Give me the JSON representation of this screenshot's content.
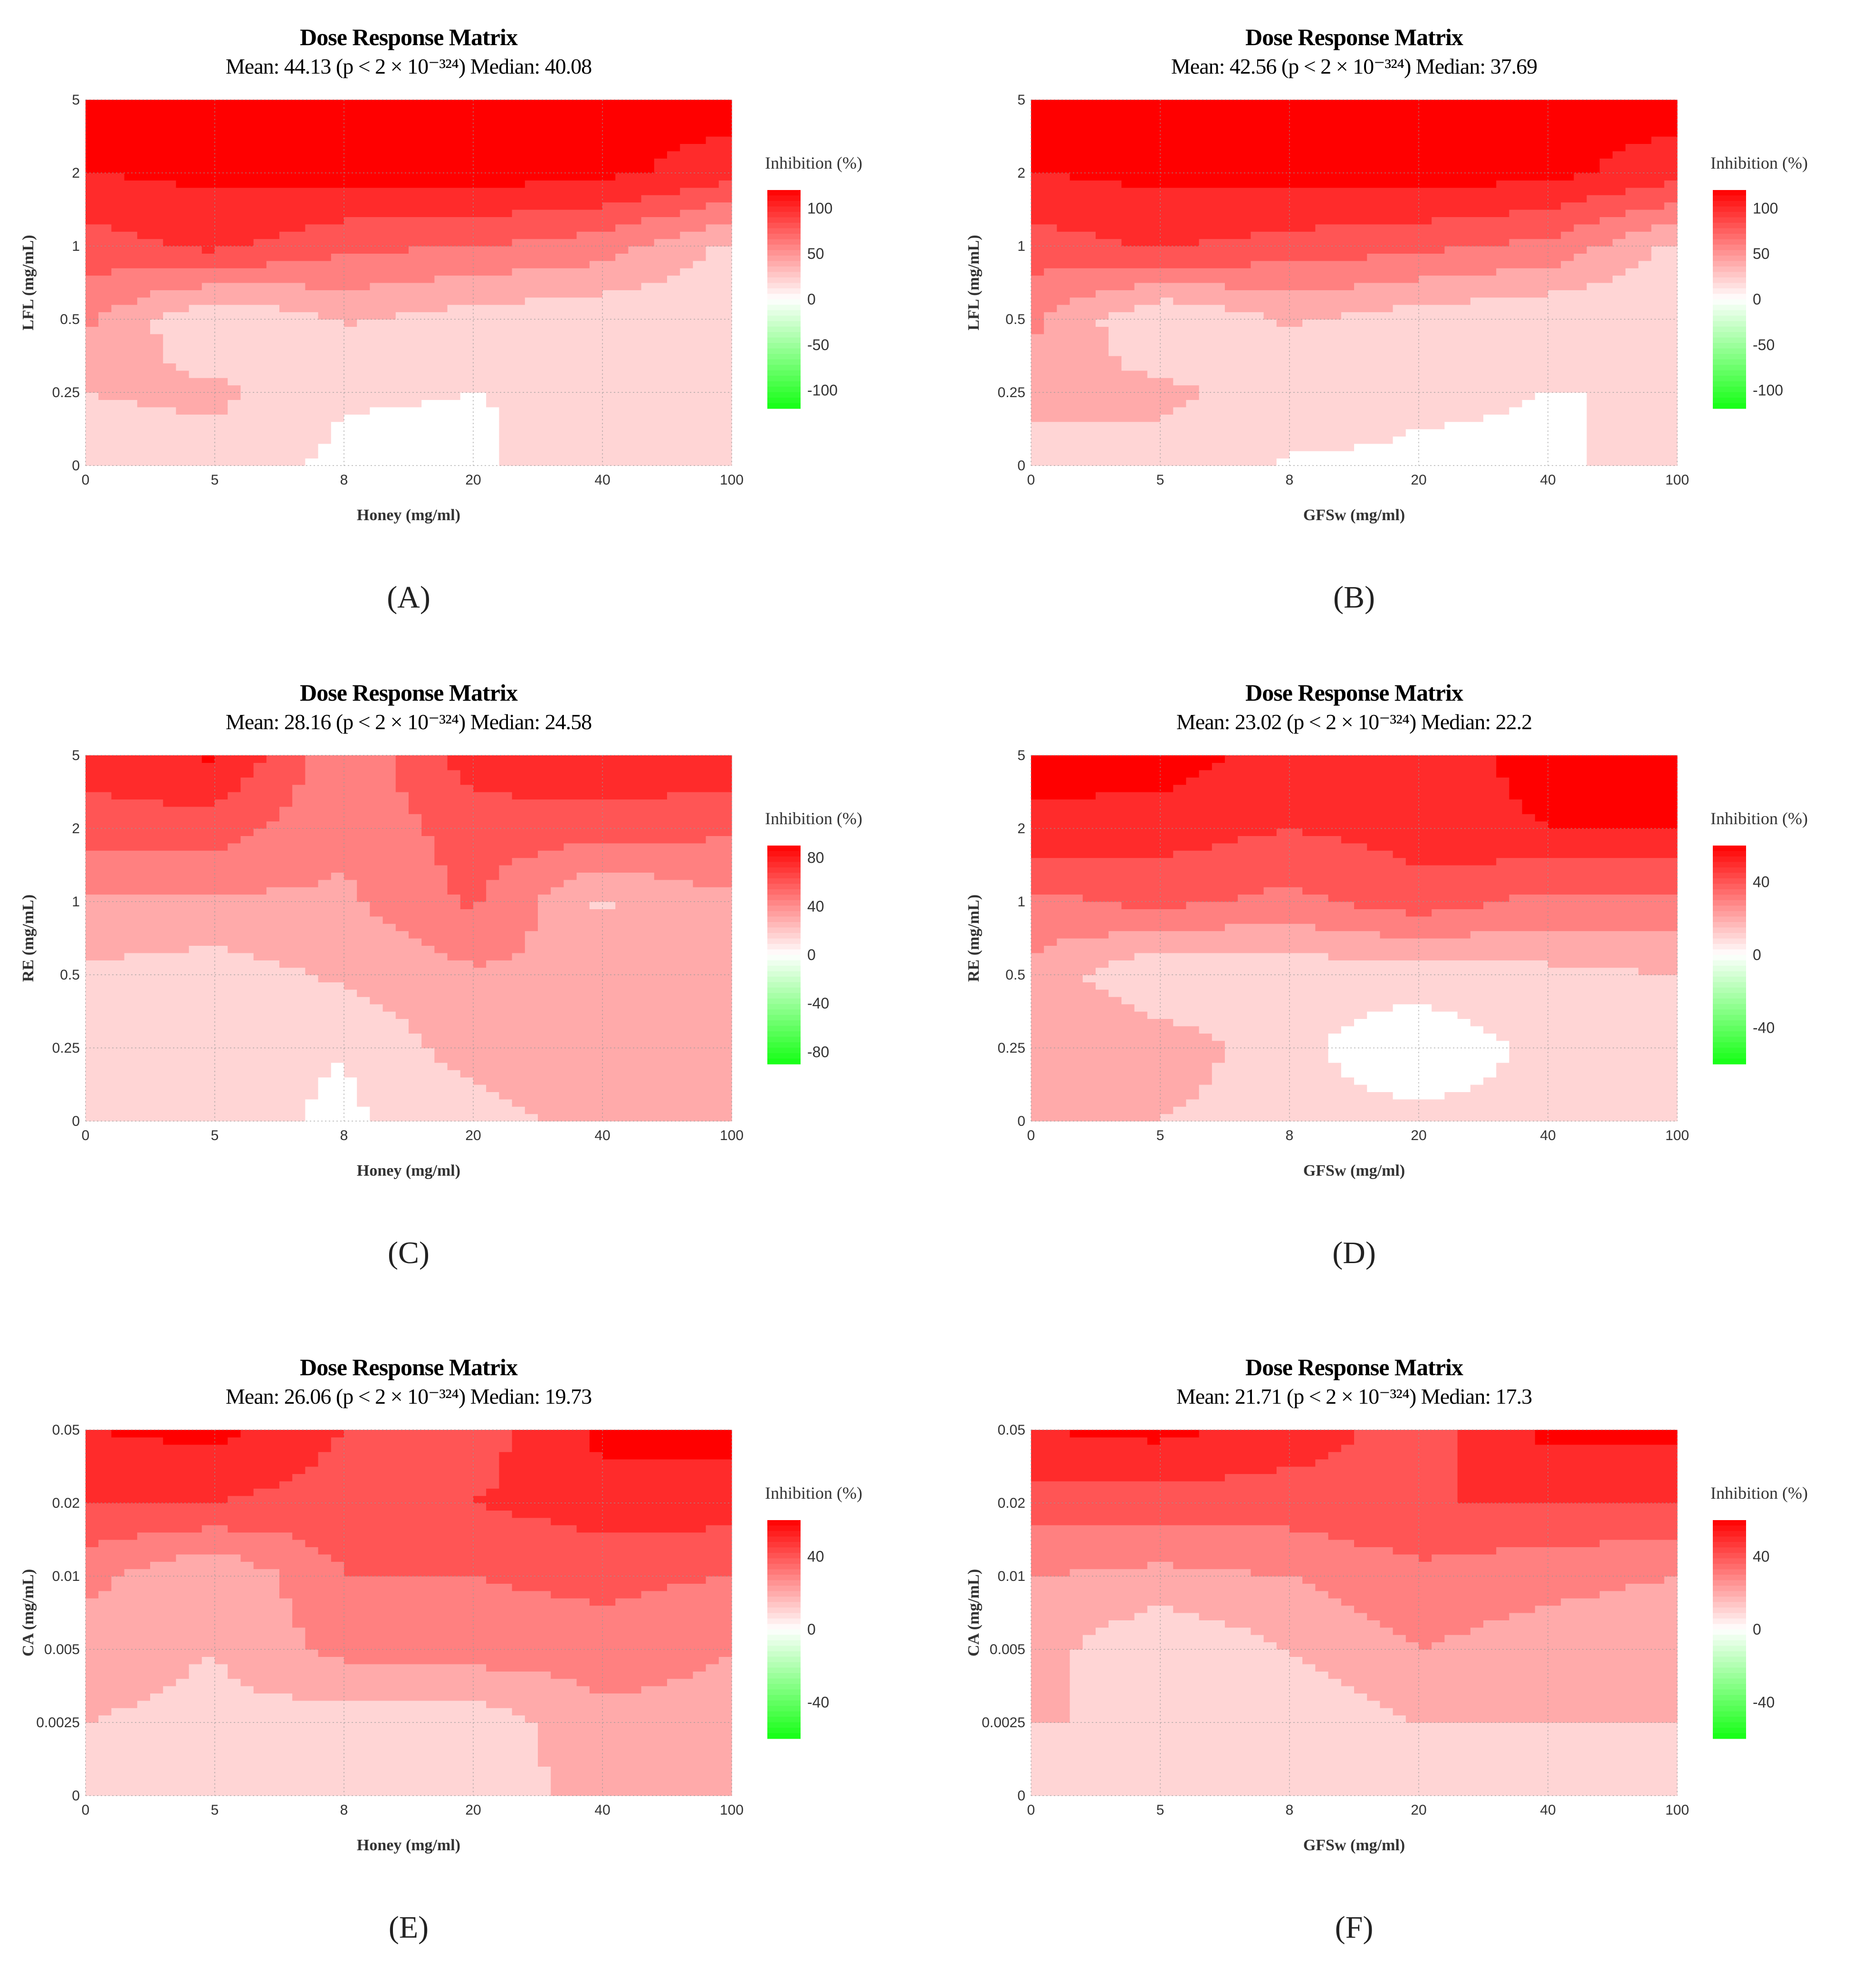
{
  "figure": {
    "colorscale": {
      "negative": "#14ff14",
      "zero": "#ffffff",
      "positive": "#ff0000"
    },
    "captions": [
      "(A)",
      "(B)",
      "(C)",
      "(D)",
      "(E)",
      "(F)"
    ]
  },
  "chart_data": [
    {
      "type": "heatmap",
      "title": "Dose Response Matrix",
      "subtitle": "Mean: 44.13 (p < 2 × 10⁻³²⁴) Median: 40.08",
      "xlabel": "Honey (mg/ml)",
      "ylabel": "LFL (mg/mL)",
      "x": [
        "0",
        "5",
        "8",
        "20",
        "40",
        "100"
      ],
      "y": [
        "0",
        "0.25",
        "0.5",
        "1",
        "2",
        "5"
      ],
      "legend_title": "Inhibition (%)",
      "legend_ticks": [
        "100",
        "50",
        "0",
        "-50",
        "-100"
      ],
      "zlim": [
        -120,
        120
      ],
      "values": [
        [
          15,
          20,
          5,
          5,
          30,
          28
        ],
        [
          30,
          35,
          12,
          10,
          12,
          10
        ],
        [
          55,
          8,
          32,
          20,
          15,
          10
        ],
        [
          80,
          95,
          75,
          70,
          60,
          25
        ],
        [
          110,
          115,
          118,
          120,
          115,
          100
        ],
        [
          120,
          120,
          120,
          120,
          120,
          118
        ]
      ]
    },
    {
      "type": "heatmap",
      "title": "Dose Response Matrix",
      "subtitle": "Mean: 42.56 (p < 2 × 10⁻³²⁴) Median: 37.69",
      "xlabel": "GFSw (mg/ml)",
      "ylabel": "LFL (mg/mL)",
      "x": [
        "0",
        "5",
        "8",
        "20",
        "40",
        "100"
      ],
      "y": [
        "0",
        "0.25",
        "0.5",
        "1",
        "2",
        "5"
      ],
      "legend_title": "Inhibition (%)",
      "legend_ticks": [
        "100",
        "50",
        "0",
        "-50",
        "-100"
      ],
      "zlim": [
        -120,
        120
      ],
      "values": [
        [
          22,
          22,
          8,
          8,
          8,
          15
        ],
        [
          35,
          35,
          20,
          12,
          10,
          10
        ],
        [
          55,
          8,
          32,
          20,
          12,
          10
        ],
        [
          80,
          92,
          82,
          75,
          65,
          25
        ],
        [
          110,
          115,
          118,
          120,
          115,
          100
        ],
        [
          120,
          120,
          120,
          120,
          120,
          118
        ]
      ]
    },
    {
      "type": "heatmap",
      "title": "Dose Response Matrix",
      "subtitle": "Mean: 28.16 (p < 2 × 10⁻³²⁴) Median: 24.58",
      "xlabel": "Honey (mg/ml)",
      "ylabel": "RE (mg/mL)",
      "x": [
        "0",
        "5",
        "8",
        "20",
        "40",
        "100"
      ],
      "y": [
        "0",
        "0.25",
        "0.5",
        "1",
        "2",
        "5"
      ],
      "legend_title": "Inhibition (%)",
      "legend_ticks": [
        "80",
        "40",
        "0",
        "-40",
        "-80"
      ],
      "zlim": [
        -90,
        90
      ],
      "values": [
        [
          10,
          12,
          5,
          15,
          30,
          35
        ],
        [
          15,
          12,
          8,
          30,
          35,
          35
        ],
        [
          20,
          15,
          25,
          35,
          35,
          35
        ],
        [
          35,
          35,
          35,
          55,
          20,
          35
        ],
        [
          60,
          60,
          40,
          60,
          60,
          55
        ],
        [
          75,
          85,
          40,
          75,
          80,
          80
        ]
      ]
    },
    {
      "type": "heatmap",
      "title": "Dose Response Matrix",
      "subtitle": "Mean: 23.02 (p < 2 × 10⁻³²⁴) Median: 22.2",
      "xlabel": "GFSw (mg/ml)",
      "ylabel": "RE (mg/mL)",
      "x": [
        "0",
        "5",
        "8",
        "20",
        "40",
        "100"
      ],
      "y": [
        "0",
        "0.25",
        "0.5",
        "1",
        "2",
        "5"
      ],
      "legend_title": "Inhibition (%)",
      "legend_ticks": [
        "40",
        "0",
        "-40"
      ],
      "zlim": [
        -60,
        60
      ],
      "values": [
        [
          15,
          15,
          8,
          8,
          8,
          8
        ],
        [
          25,
          22,
          8,
          -3,
          8,
          8
        ],
        [
          22,
          5,
          8,
          10,
          12,
          15
        ],
        [
          32,
          38,
          32,
          40,
          32,
          32
        ],
        [
          52,
          50,
          45,
          50,
          55,
          55
        ],
        [
          60,
          60,
          50,
          48,
          60,
          60
        ]
      ]
    },
    {
      "type": "heatmap",
      "title": "Dose Response Matrix",
      "subtitle": "Mean: 26.06 (p < 2 × 10⁻³²⁴) Median: 19.73",
      "xlabel": "Honey (mg/ml)",
      "ylabel": "CA (mg/mL)",
      "x": [
        "0",
        "5",
        "8",
        "20",
        "40",
        "100"
      ],
      "y": [
        "0",
        "0.0025",
        "0.005",
        "0.01",
        "0.02",
        "0.05"
      ],
      "legend_title": "Inhibition (%)",
      "legend_ticks": [
        "40",
        "0",
        "-40"
      ],
      "zlim": [
        -60,
        60
      ],
      "values": [
        [
          10,
          8,
          5,
          8,
          20,
          20
        ],
        [
          15,
          12,
          10,
          8,
          22,
          22
        ],
        [
          20,
          15,
          28,
          30,
          30,
          25
        ],
        [
          28,
          15,
          35,
          35,
          38,
          35
        ],
        [
          45,
          45,
          40,
          45,
          50,
          50
        ],
        [
          55,
          58,
          45,
          40,
          58,
          58
        ]
      ]
    },
    {
      "type": "heatmap",
      "title": "Dose Response Matrix",
      "subtitle": "Mean: 21.71 (p < 2 × 10⁻³²⁴) Median: 17.3",
      "xlabel": "GFSw (mg/ml)",
      "ylabel": "CA (mg/mL)",
      "x": [
        "0",
        "5",
        "8",
        "20",
        "40",
        "100"
      ],
      "y": [
        "0",
        "0.0025",
        "0.005",
        "0.01",
        "0.02",
        "0.05"
      ],
      "legend_title": "Inhibition (%)",
      "legend_ticks": [
        "40",
        "0",
        "-40"
      ],
      "zlim": [
        -60,
        60
      ],
      "values": [
        [
          8,
          8,
          8,
          8,
          8,
          8
        ],
        [
          15,
          15,
          8,
          15,
          15,
          15
        ],
        [
          20,
          5,
          15,
          25,
          20,
          18
        ],
        [
          25,
          22,
          25,
          32,
          28,
          25
        ],
        [
          40,
          40,
          40,
          45,
          45,
          45
        ],
        [
          55,
          58,
          50,
          40,
          58,
          58
        ]
      ]
    }
  ]
}
